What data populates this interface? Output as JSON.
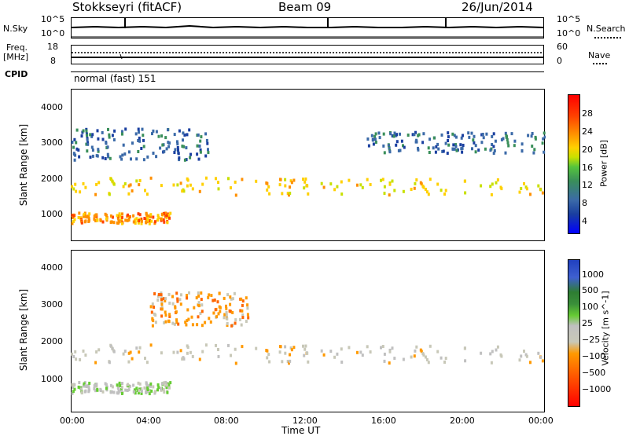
{
  "header": {
    "title": "Stokkseyri (fitACF)",
    "beam": "Beam 09",
    "date": "26/Jun/2014"
  },
  "strip_sky": {
    "left_label": "N.Sky",
    "left_ticks": [
      "10^5",
      "10^0"
    ],
    "right_ticks": [
      "10^5",
      "10^0"
    ],
    "right_label": "N.Search"
  },
  "strip_freq": {
    "left_label_1": "Freq.",
    "left_label_2": "[MHz]",
    "left_ticks": [
      "18",
      "8"
    ],
    "right_ticks": [
      "60",
      "0"
    ],
    "right_label": "Nave"
  },
  "cpid": {
    "label": "CPID",
    "mode": "normal (fast) 151"
  },
  "colors": {
    "power": [
      "#0000ff",
      "#1a3fa0",
      "#3b6aa8",
      "#3a8f5a",
      "#55c43c",
      "#c8e000",
      "#ffd000",
      "#ff9000",
      "#ff4000",
      "#ff0000"
    ],
    "velocity": [
      "#2040c0",
      "#3f60d0",
      "#2e7d32",
      "#66cc33",
      "#c0c0c0",
      "#c8c8b8",
      "#ff9900",
      "#ff6600",
      "#ff3300",
      "#ff0000"
    ]
  },
  "chart_data": [
    {
      "type": "heatmap",
      "title": "",
      "xlabel": "",
      "ylabel": "Slant Range [km]",
      "xlim": [
        "00:00",
        "00:00"
      ],
      "ylim": [
        180,
        4500
      ],
      "yticks": [
        "1000",
        "2000",
        "3000",
        "4000"
      ],
      "colorbar": {
        "label": "Power [dB]",
        "ticks": [
          "4",
          "8",
          "12",
          "16",
          "20",
          "24",
          "28"
        ],
        "range": [
          0,
          30
        ]
      },
      "features": [
        {
          "name": "main band",
          "x_hours": [
            0,
            24
          ],
          "range_km": [
            1500,
            2000
          ],
          "value_db": 20
        },
        {
          "name": "near echoes",
          "x_hours": [
            0,
            5
          ],
          "range_km": [
            700,
            1000
          ],
          "value_db": 24
        },
        {
          "name": "upper patches",
          "x_hours": [
            0,
            7
          ],
          "range_km": [
            2500,
            3400
          ],
          "value_db": 8
        },
        {
          "name": "evening upper band",
          "x_hours": [
            15,
            24
          ],
          "range_km": [
            2700,
            3300
          ],
          "value_db": 6
        }
      ]
    },
    {
      "type": "heatmap",
      "title": "",
      "xlabel": "Time UT",
      "ylabel": "Slant Range [km]",
      "xticks": [
        "00:00",
        "04:00",
        "08:00",
        "12:00",
        "16:00",
        "20:00",
        "00:00"
      ],
      "ylim": [
        180,
        4500
      ],
      "yticks": [
        "1000",
        "2000",
        "3000",
        "4000"
      ],
      "colorbar": {
        "label": "Velocity [m s^-1]",
        "ticks": [
          "1000",
          "500",
          "100",
          "25",
          "−25",
          "−100",
          "−500",
          "−1000"
        ]
      },
      "features": [
        {
          "name": "ground scatter band",
          "x_hours": [
            0,
            24
          ],
          "range_km": [
            1500,
            2000
          ],
          "value_ms": 0
        },
        {
          "name": "near echoes",
          "x_hours": [
            0,
            5
          ],
          "range_km": [
            700,
            1000
          ],
          "value_ms": 150
        },
        {
          "name": "orange patches",
          "x_hours": [
            4,
            9
          ],
          "range_km": [
            2500,
            3400
          ],
          "value_ms": -300
        }
      ]
    }
  ]
}
